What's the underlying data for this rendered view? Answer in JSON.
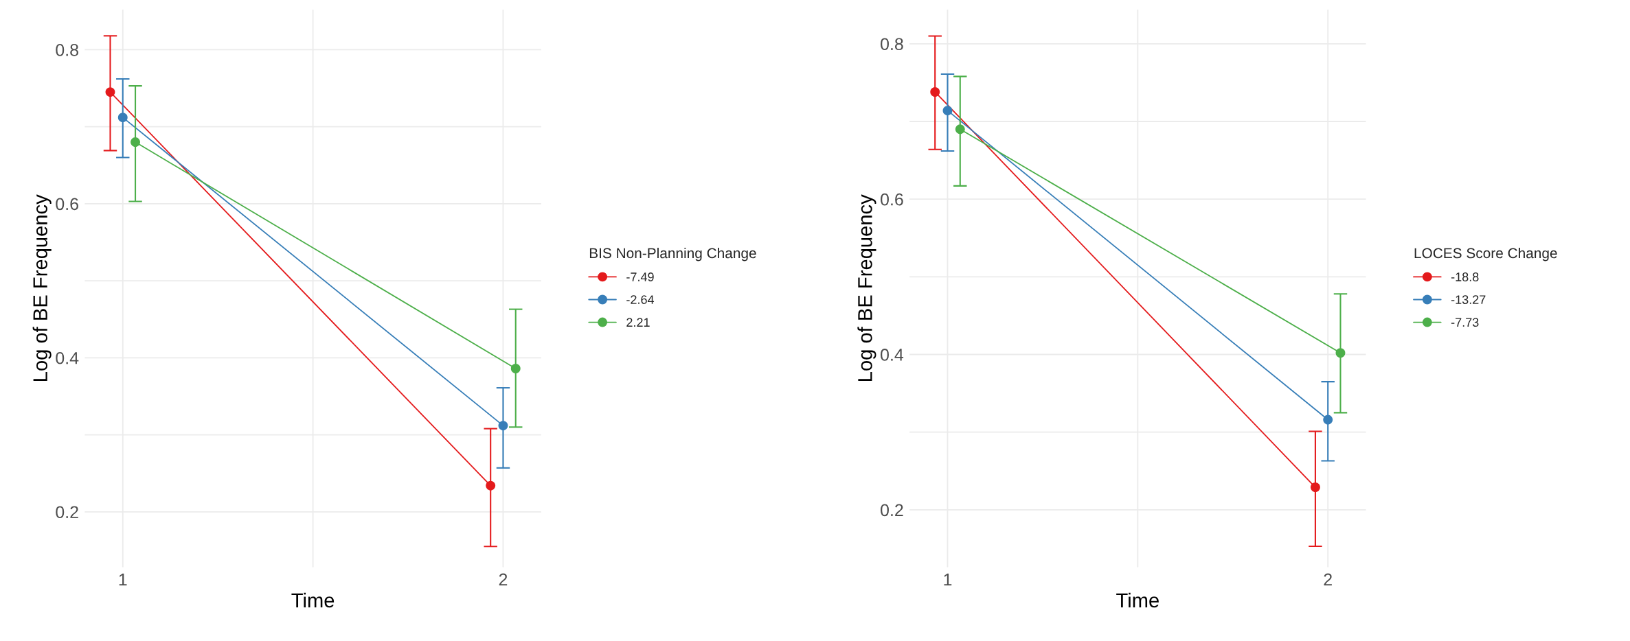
{
  "chart_data": [
    {
      "type": "line",
      "xlabel": "Time",
      "ylabel": "Log of BE Frequency",
      "legend_title": "BIS Non-Planning Change",
      "xlim": [
        0.9,
        2.1
      ],
      "ylim": [
        0.128,
        0.852
      ],
      "xticks": [
        1,
        {
          "value": 1.5,
          "label": null
        },
        2
      ],
      "yticks": [
        0.2,
        {
          "value": 0.3,
          "label": null
        },
        0.4,
        {
          "value": 0.5,
          "label": null
        },
        0.6,
        {
          "value": 0.7,
          "label": null
        },
        0.8
      ],
      "grid": true,
      "legend": "right",
      "marker": "circle",
      "line_style": "solid",
      "series": [
        {
          "name": "-7.49",
          "color": "#e41a1c",
          "x": [
            0.967,
            1.967
          ],
          "values": [
            0.745,
            0.234
          ],
          "errors": [
            [
              0.669,
              0.818
            ],
            [
              0.155,
              0.308
            ]
          ]
        },
        {
          "name": "-2.64",
          "color": "#377eb8",
          "x": [
            1,
            2
          ],
          "values": [
            0.712,
            0.312
          ],
          "errors": [
            [
              0.66,
              0.762
            ],
            [
              0.257,
              0.361
            ]
          ]
        },
        {
          "name": "2.21",
          "color": "#4daf4a",
          "x": [
            1.033,
            2.033
          ],
          "values": [
            0.68,
            0.386
          ],
          "errors": [
            [
              0.603,
              0.753
            ],
            [
              0.31,
              0.463
            ]
          ]
        }
      ]
    },
    {
      "type": "line",
      "xlabel": "Time",
      "ylabel": "Log of BE Frequency",
      "legend_title": "LOCES Score Change",
      "xlim": [
        0.9,
        2.1
      ],
      "ylim": [
        0.126,
        0.844
      ],
      "xticks": [
        1,
        {
          "value": 1.5,
          "label": null
        },
        2
      ],
      "yticks": [
        0.2,
        {
          "value": 0.3,
          "label": null
        },
        0.4,
        {
          "value": 0.5,
          "label": null
        },
        0.6,
        {
          "value": 0.7,
          "label": null
        },
        0.8
      ],
      "grid": true,
      "legend": "right",
      "marker": "circle",
      "line_style": "solid",
      "series": [
        {
          "name": "-18.8",
          "color": "#e41a1c",
          "x": [
            0.967,
            1.967
          ],
          "values": [
            0.738,
            0.229
          ],
          "errors": [
            [
              0.664,
              0.81
            ],
            [
              0.153,
              0.301
            ]
          ]
        },
        {
          "name": "-13.27",
          "color": "#377eb8",
          "x": [
            1,
            2
          ],
          "values": [
            0.714,
            0.316
          ],
          "errors": [
            [
              0.662,
              0.761
            ],
            [
              0.263,
              0.365
            ]
          ]
        },
        {
          "name": "-7.73",
          "color": "#4daf4a",
          "x": [
            1.033,
            2.033
          ],
          "values": [
            0.69,
            0.402
          ],
          "errors": [
            [
              0.617,
              0.758
            ],
            [
              0.325,
              0.478
            ]
          ]
        }
      ]
    }
  ]
}
